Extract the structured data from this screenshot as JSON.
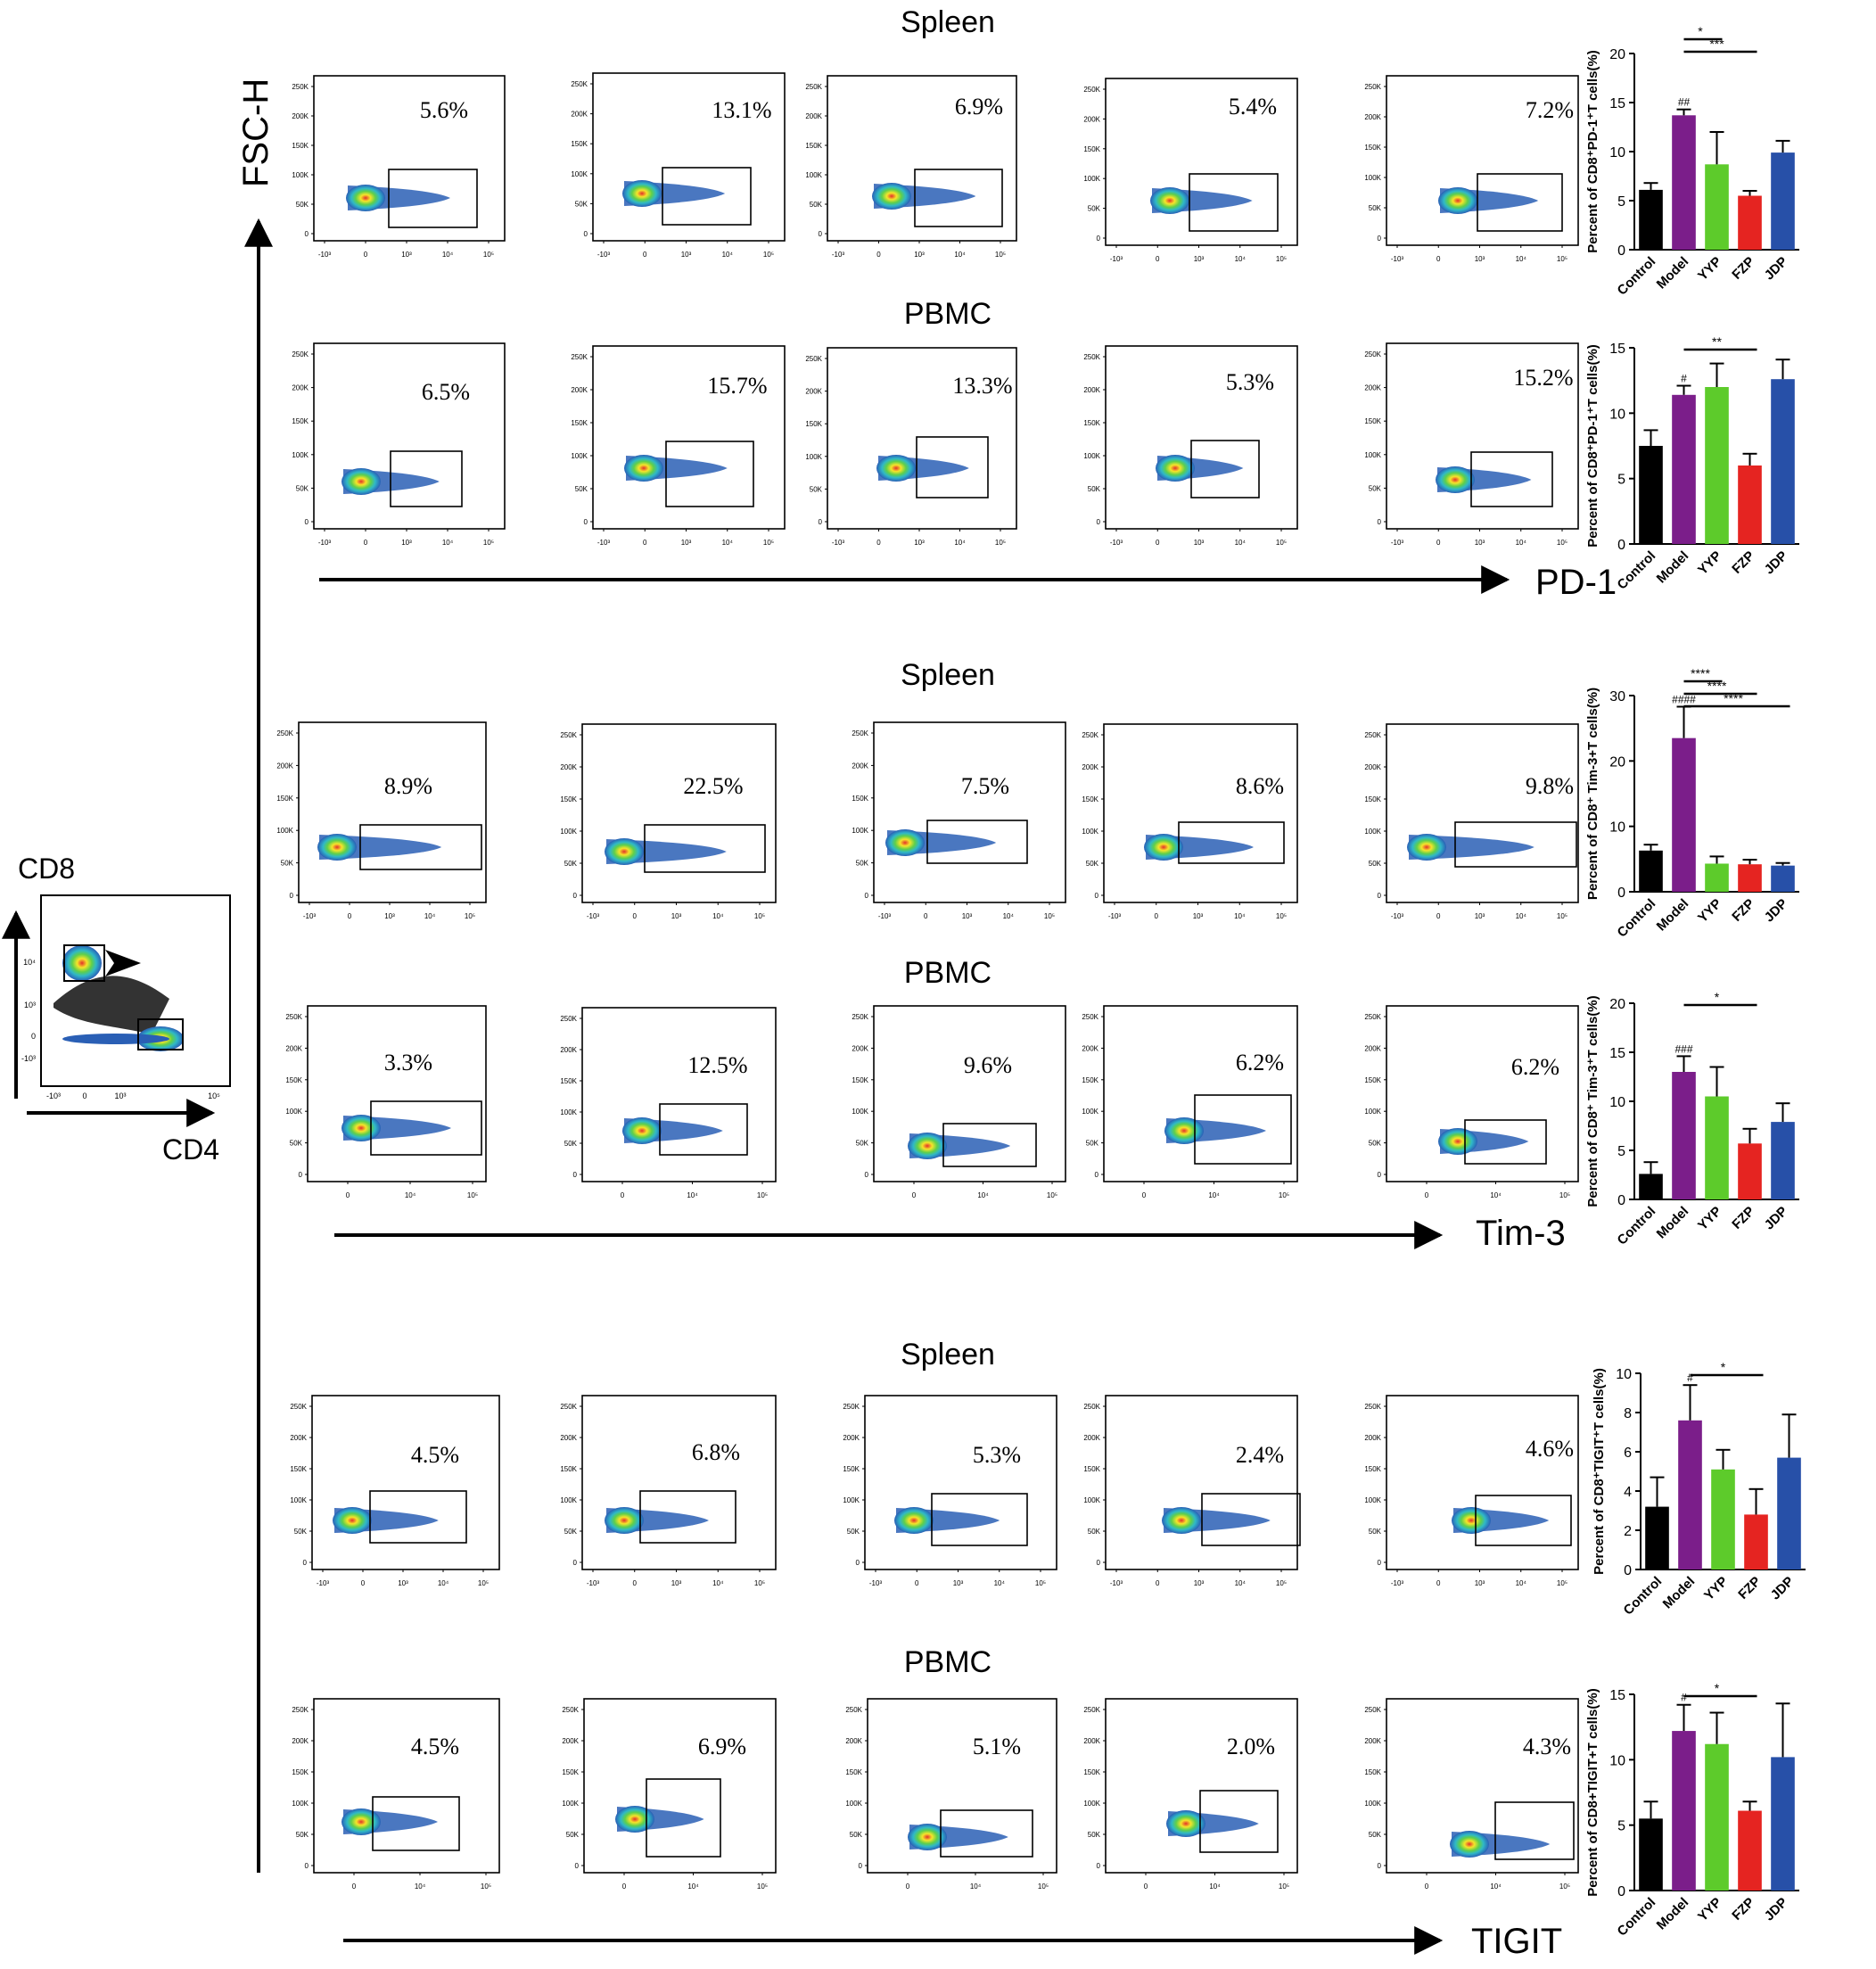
{
  "colors": {
    "control": "#000000",
    "model": "#7b1e8a",
    "yyp": "#5dcb2b",
    "fzp": "#e52421",
    "jdp": "#2750a8",
    "density_low": "#2a5fb5",
    "density_high": "#e4302a"
  },
  "axis_labels": {
    "fsc": "FSC-H",
    "cd8": "CD8",
    "cd4": "CD4",
    "pd1": "PD-1",
    "tim3": "Tim-3",
    "tigit": "TIGIT"
  },
  "flow_ticks": {
    "y_labels": [
      "250K",
      "200K",
      "150K",
      "100K",
      "50K",
      "0"
    ],
    "x_labels": [
      "-10³",
      "0",
      "10³",
      "10⁴",
      "10⁵"
    ],
    "x_labels_short": [
      "0",
      "10⁴",
      "10⁵"
    ],
    "gate_x_labels": [
      "-10³",
      "0",
      "10³",
      "10⁵"
    ],
    "gate_y_labels": [
      "10⁴",
      "10³",
      "0",
      "-10³"
    ]
  },
  "sections": [
    {
      "id": "pd1",
      "groups": [
        {
          "label": "Spleen",
          "percents": [
            "5.6%",
            "13.1%",
            "6.9%",
            "5.4%",
            "7.2%"
          ]
        },
        {
          "label": "PBMC",
          "percents": [
            "6.5%",
            "15.7%",
            "13.3%",
            "5.3%",
            "15.2%"
          ]
        }
      ]
    },
    {
      "id": "tim3",
      "groups": [
        {
          "label": "Spleen",
          "percents": [
            "8.9%",
            "22.5%",
            "7.5%",
            "8.6%",
            "9.8%"
          ]
        },
        {
          "label": "PBMC",
          "percents": [
            "3.3%",
            "12.5%",
            "9.6%",
            "6.2%",
            "6.2%"
          ]
        }
      ]
    },
    {
      "id": "tigit",
      "groups": [
        {
          "label": "Spleen",
          "percents": [
            "4.5%",
            "6.8%",
            "5.3%",
            "2.4%",
            "4.6%"
          ]
        },
        {
          "label": "PBMC",
          "percents": [
            "4.5%",
            "6.9%",
            "5.1%",
            "2.0%",
            "4.3%"
          ]
        }
      ]
    }
  ],
  "chart_data": [
    {
      "type": "bar",
      "ylabel": "Percent of CD8⁺PD-1⁺T cells(%)",
      "categories": [
        "Control",
        "Model",
        "YYP",
        "FZP",
        "JDP"
      ],
      "values": [
        6.1,
        13.7,
        8.7,
        5.5,
        9.9
      ],
      "errors": [
        0.7,
        0.6,
        3.3,
        0.5,
        1.2
      ],
      "ylim": [
        0,
        20
      ],
      "yticks": [
        0,
        5,
        10,
        15,
        20
      ],
      "hash": "##",
      "sig": [
        {
          "to": 2,
          "label": "*"
        },
        {
          "to": 3,
          "label": "***"
        }
      ]
    },
    {
      "type": "bar",
      "ylabel": "Percent of CD8⁺PD-1⁺T cells(%)",
      "categories": [
        "Control",
        "Model",
        "YYP",
        "FZP",
        "JDP"
      ],
      "values": [
        7.5,
        11.4,
        12.0,
        6.0,
        12.6
      ],
      "errors": [
        1.2,
        0.7,
        1.8,
        0.9,
        1.5
      ],
      "ylim": [
        0,
        15
      ],
      "yticks": [
        0,
        5,
        10,
        15
      ],
      "hash": "#",
      "sig": [
        {
          "to": 3,
          "label": "**"
        }
      ]
    },
    {
      "type": "bar",
      "ylabel": "Percent of CD8⁺ Tim-3+T cells(%)",
      "categories": [
        "Control",
        "Model",
        "YYP",
        "FZP",
        "JDP"
      ],
      "values": [
        6.3,
        23.5,
        4.3,
        4.2,
        4.0
      ],
      "errors": [
        0.9,
        4.8,
        1.1,
        0.7,
        0.4
      ],
      "ylim": [
        0,
        30
      ],
      "yticks": [
        0,
        10,
        20,
        30
      ],
      "hash": "####",
      "sig": [
        {
          "to": 2,
          "label": "****"
        },
        {
          "to": 3,
          "label": "****"
        },
        {
          "to": 4,
          "label": "****"
        }
      ]
    },
    {
      "type": "bar",
      "ylabel": "Percent of CD8⁺ Tim-3⁺T cells(%)",
      "categories": [
        "Control",
        "Model",
        "YYP",
        "FZP",
        "JDP"
      ],
      "values": [
        2.6,
        13.0,
        10.5,
        5.7,
        7.9
      ],
      "errors": [
        1.2,
        1.6,
        3.0,
        1.5,
        1.9
      ],
      "ylim": [
        0,
        20
      ],
      "yticks": [
        0,
        5,
        10,
        15,
        20
      ],
      "hash": "###",
      "sig": [
        {
          "to": 3,
          "label": "*"
        }
      ]
    },
    {
      "type": "bar",
      "ylabel": "Percent of CD8⁺TIGIT⁺T cells(%)",
      "categories": [
        "Control",
        "Model",
        "YYP",
        "FZP",
        "JDP"
      ],
      "values": [
        3.2,
        7.6,
        5.1,
        2.8,
        5.7
      ],
      "errors": [
        1.5,
        1.8,
        1.0,
        1.3,
        2.2
      ],
      "ylim": [
        0,
        10
      ],
      "yticks": [
        0,
        2,
        4,
        6,
        8,
        10
      ],
      "hash": "#",
      "sig": [
        {
          "to": 3,
          "label": "*"
        }
      ]
    },
    {
      "type": "bar",
      "ylabel": "Percent of CD8+TIGIT+T cells(%)",
      "categories": [
        "Control",
        "Model",
        "YYP",
        "FZP",
        "JDP"
      ],
      "values": [
        5.5,
        12.2,
        11.2,
        6.1,
        10.2
      ],
      "errors": [
        1.3,
        2.0,
        2.4,
        0.7,
        4.1
      ],
      "ylim": [
        0,
        15
      ],
      "yticks": [
        0,
        5,
        10,
        15
      ],
      "hash": "#",
      "sig": [
        {
          "to": 3,
          "label": "*"
        }
      ]
    }
  ]
}
